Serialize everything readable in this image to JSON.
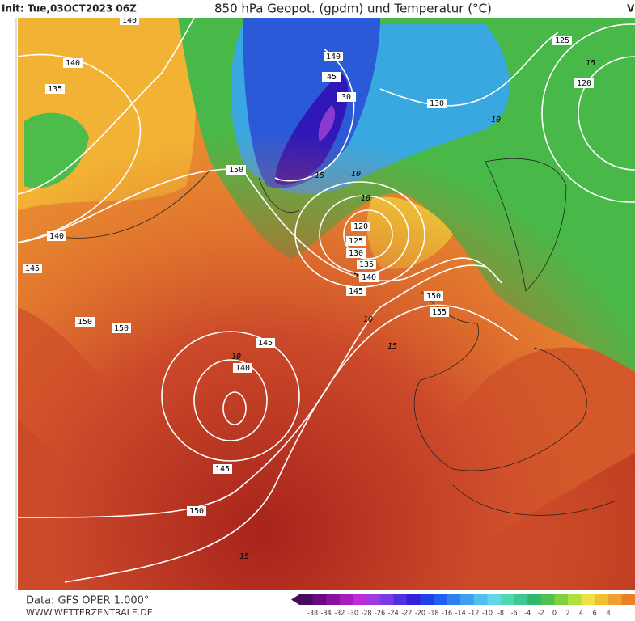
{
  "header": {
    "init": "Init: Tue,03OCT2023 06Z",
    "title": "850 hPa Geopot. (gpdm) und Temperatur (°C)",
    "right": "V"
  },
  "map": {
    "contour_labels": [
      "140",
      "140",
      "135",
      "150",
      "140",
      "145",
      "150",
      "150",
      "145",
      "140",
      "145",
      "150",
      "140",
      "45",
      "30",
      "130",
      "125",
      "120",
      "120",
      "125",
      "130",
      "135",
      "140",
      "145",
      "150",
      "155",
      "-10",
      "-15",
      "10",
      "5",
      "10",
      "15",
      "10",
      "15",
      "10",
      "15"
    ]
  },
  "footer": {
    "source": "Data: GFS OPER 1.000°",
    "site": "WWW.WETTERZENTRALE.DE"
  },
  "colorbar": {
    "labels": [
      -38,
      -34,
      -32,
      -30,
      -28,
      -26,
      -24,
      -22,
      -20,
      -18,
      -16,
      -14,
      -12,
      -10,
      -8,
      -6,
      -4,
      -2,
      0,
      2,
      4,
      6,
      8
    ],
    "colors": [
      "#4a0a5e",
      "#6a0a7e",
      "#8a109e",
      "#a81cbe",
      "#c02ad8",
      "#a03ae0",
      "#7a3ae8",
      "#5030e0",
      "#3020e0",
      "#2040e8",
      "#2060f0",
      "#3080f0",
      "#40a0f0",
      "#50c0f0",
      "#60d8e8",
      "#50d8b0",
      "#40c890",
      "#30b870",
      "#50c050",
      "#80d040",
      "#b0e040",
      "#f0e040",
      "#f0c030",
      "#f0a030",
      "#e88028"
    ]
  }
}
